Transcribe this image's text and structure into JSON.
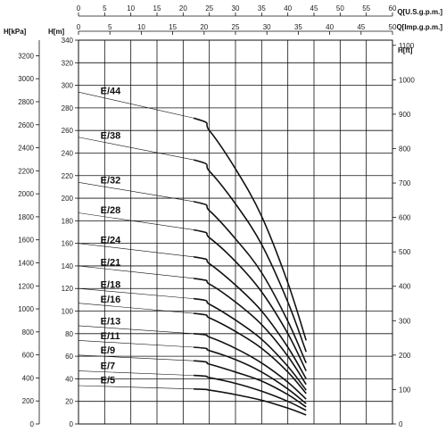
{
  "chart_data": {
    "type": "line",
    "axes": {
      "kpa": {
        "label": "H[kPa]",
        "min": 0,
        "max": 3335,
        "ticks": [
          0,
          200,
          400,
          600,
          800,
          1000,
          1200,
          1400,
          1600,
          1800,
          2000,
          2200,
          2400,
          2600,
          2800,
          3000,
          3200
        ]
      },
      "m": {
        "label": "H[m]",
        "min": 0,
        "max": 340,
        "ticks": [
          0,
          20,
          40,
          60,
          80,
          100,
          120,
          140,
          160,
          180,
          200,
          220,
          240,
          260,
          280,
          300,
          320,
          340
        ]
      },
      "ft": {
        "label": "H[ft]",
        "min": 0,
        "max": 1115,
        "ticks": [
          0,
          100,
          200,
          300,
          400,
          500,
          600,
          700,
          800,
          900,
          1000,
          1100
        ]
      },
      "usgpm": {
        "label": "Q[U.S.g.p.m.]",
        "min": 0,
        "max": 60,
        "ticks": [
          0,
          5,
          10,
          15,
          20,
          25,
          30,
          35,
          40,
          45,
          50,
          55,
          60
        ]
      },
      "impgpm": {
        "label": "Q[Imp.g.p.m.]",
        "min": 0,
        "max": 50,
        "ticks": [
          0,
          5,
          10,
          15,
          20,
          25,
          30,
          35,
          40,
          45,
          50
        ]
      }
    },
    "grid": true,
    "series": [
      {
        "name": "E/44",
        "x": [
          0,
          22,
          25,
          30,
          35,
          40,
          43.5
        ],
        "y": [
          294,
          271,
          260,
          226,
          184,
          125,
          74
        ]
      },
      {
        "name": "E/38",
        "x": [
          0,
          22,
          25,
          30,
          35,
          40,
          43.5
        ],
        "y": [
          254,
          234,
          224,
          195,
          159,
          108,
          64
        ]
      },
      {
        "name": "E/32",
        "x": [
          0,
          22,
          25,
          30,
          35,
          40,
          43.5
        ],
        "y": [
          214,
          197,
          189,
          164,
          134,
          91,
          54
        ]
      },
      {
        "name": "E/28",
        "x": [
          0,
          22,
          25,
          30,
          35,
          40,
          43.5
        ],
        "y": [
          187,
          172,
          165,
          144,
          117,
          80,
          47
        ]
      },
      {
        "name": "E/24",
        "x": [
          0,
          22,
          25,
          30,
          35,
          40,
          43.5
        ],
        "y": [
          160,
          148,
          142,
          123,
          100,
          68,
          40
        ]
      },
      {
        "name": "E/21",
        "x": [
          0,
          22,
          25,
          30,
          35,
          40,
          43.5
        ],
        "y": [
          140,
          129,
          124,
          108,
          88,
          60,
          35
        ]
      },
      {
        "name": "E/18",
        "x": [
          0,
          22,
          25,
          30,
          35,
          40,
          43.5
        ],
        "y": [
          120,
          111,
          106,
          92,
          75,
          51,
          30
        ]
      },
      {
        "name": "E/16",
        "x": [
          0,
          22,
          25,
          30,
          35,
          40,
          43.5
        ],
        "y": [
          107,
          98,
          94,
          82,
          67,
          46,
          27
        ]
      },
      {
        "name": "E/13",
        "x": [
          0,
          22,
          25,
          30,
          35,
          40,
          43.5
        ],
        "y": [
          87,
          80,
          77,
          67,
          54,
          37,
          22
        ]
      },
      {
        "name": "E/11",
        "x": [
          0,
          22,
          25,
          30,
          35,
          40,
          43.5
        ],
        "y": [
          74,
          68,
          65,
          57,
          46,
          31,
          18
        ]
      },
      {
        "name": "E/9",
        "x": [
          0,
          22,
          25,
          30,
          35,
          40,
          43.5
        ],
        "y": [
          61,
          56,
          53,
          46,
          38,
          26,
          15
        ]
      },
      {
        "name": "E/7",
        "x": [
          0,
          22,
          25,
          30,
          35,
          40,
          43.5
        ],
        "y": [
          47,
          43,
          41,
          36,
          29,
          20,
          12
        ]
      },
      {
        "name": "E/5",
        "x": [
          0,
          22,
          25,
          30,
          35,
          40,
          43.5
        ],
        "y": [
          34,
          31,
          30,
          26,
          21,
          14,
          8
        ]
      }
    ]
  }
}
